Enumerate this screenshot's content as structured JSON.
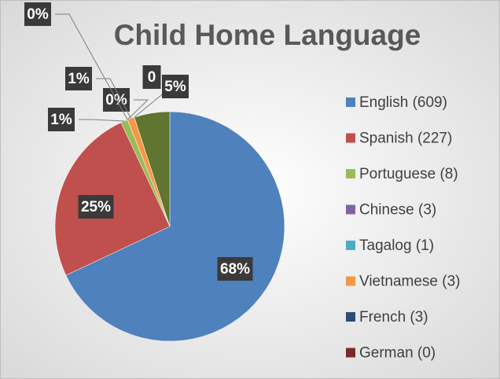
{
  "chart_data": {
    "type": "pie",
    "title": "Child Home Language",
    "categories": [
      "English (609)",
      "Spanish (227)",
      "Portuguese (8)",
      "Chinese (3)",
      "Tagalog (1)",
      "Vietnamese (3)",
      "French (3)",
      "German (0)",
      null
    ],
    "values": [
      68,
      25,
      1,
      0,
      0,
      1,
      0,
      0,
      5
    ],
    "value_labels": [
      "68%",
      "25%",
      "1%",
      "0%",
      "0%",
      "1%",
      "0",
      null,
      "5%"
    ],
    "colors": [
      "#4f81bd",
      "#c0504d",
      "#9bbb59",
      "#8064a2",
      "#4bacc6",
      "#f79646",
      "#2c4d75",
      "#772c2a",
      "#5f7530"
    ],
    "legend": "right"
  }
}
